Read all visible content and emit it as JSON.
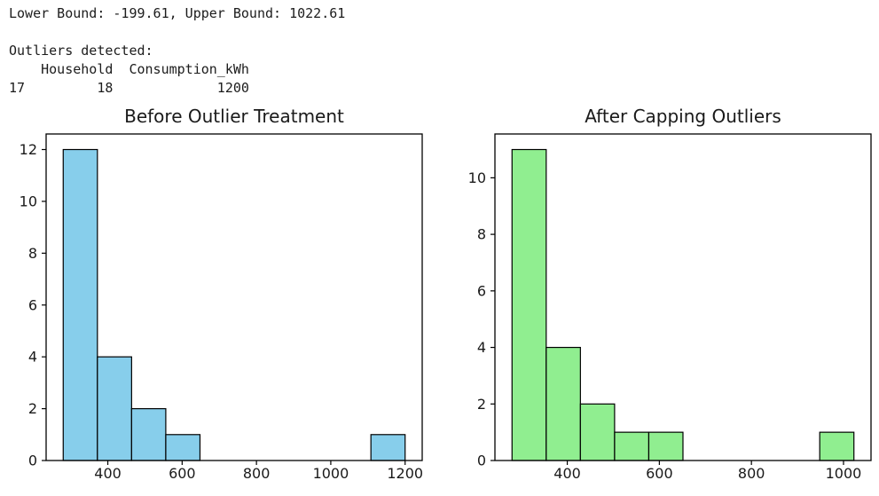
{
  "console": {
    "bounds_line": "Lower Bound: -199.61, Upper Bound: 1022.61",
    "outliers_label": "Outliers detected:",
    "table_header": "    Household  Consumption_kWh",
    "table_row": "17         18             1200"
  },
  "bounds": {
    "lower": -199.61,
    "upper": 1022.61
  },
  "outlier_table": {
    "columns": [
      "Household",
      "Consumption_kWh"
    ],
    "rows": [
      {
        "index": 17,
        "Household": 18,
        "Consumption_kWh": 1200
      }
    ]
  },
  "chart_data": [
    {
      "type": "bar",
      "variant": "histogram",
      "title": "Before Outlier Treatment",
      "bar_color": "#87CEEB",
      "edge_color": "#000000",
      "bin_edges": [
        280,
        372,
        464,
        556,
        648,
        740,
        832,
        924,
        1016,
        1108,
        1200
      ],
      "counts": [
        12,
        4,
        2,
        1,
        0,
        0,
        0,
        0,
        0,
        1
      ],
      "xticks": [
        400,
        600,
        800,
        1000,
        1200
      ],
      "yticks": [
        0,
        2,
        4,
        6,
        8,
        10,
        12
      ],
      "xlim": [
        234,
        1246
      ],
      "ylim": [
        0,
        12.6
      ],
      "grid": false,
      "legend": null
    },
    {
      "type": "bar",
      "variant": "histogram",
      "title": "After Capping Outliers",
      "bar_color": "#90EE90",
      "edge_color": "#000000",
      "bin_edges": [
        280,
        354.26,
        428.52,
        502.78,
        577.04,
        651.3,
        725.57,
        799.83,
        874.09,
        948.35,
        1022.61
      ],
      "counts": [
        11,
        4,
        2,
        1,
        1,
        0,
        0,
        0,
        0,
        1
      ],
      "xticks": [
        400,
        600,
        800,
        1000
      ],
      "yticks": [
        0,
        2,
        4,
        6,
        8,
        10
      ],
      "xlim": [
        242.87,
        1059.74
      ],
      "ylim": [
        0,
        11.55
      ],
      "grid": false,
      "legend": null
    }
  ]
}
